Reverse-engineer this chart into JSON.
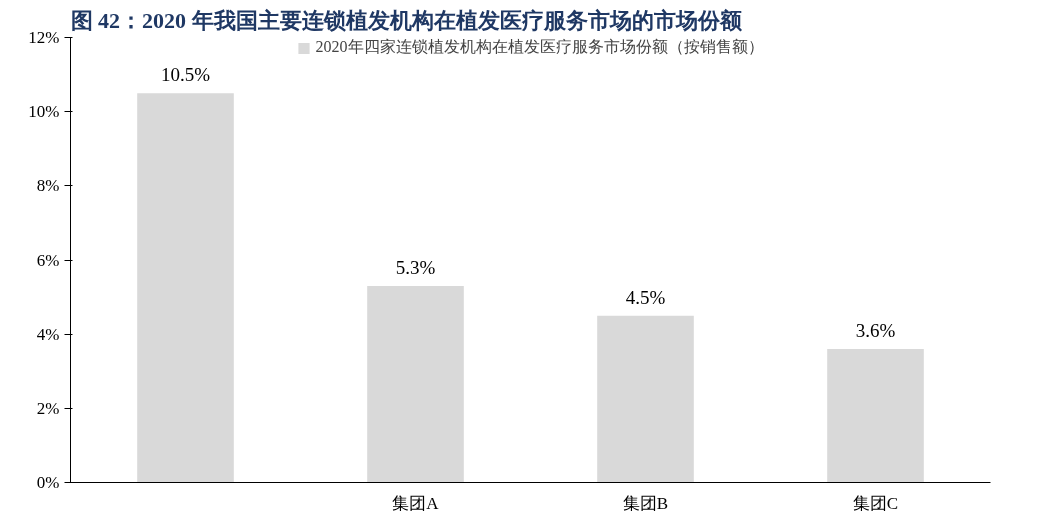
{
  "chart_data": {
    "type": "bar",
    "title": "图 42：2020 年我国主要连锁植发机构在植发医疗服务市场的市场份额",
    "categories": [
      null,
      "集团A",
      "集团B",
      "集团C"
    ],
    "series": [
      {
        "name": "2020年四家连锁植发机构在植发医疗服务市场份额（按销售额）",
        "color": "#d9d9d9",
        "values": [
          10.5,
          5.3,
          4.5,
          3.6
        ]
      }
    ],
    "ylim": [
      0,
      12
    ],
    "yticks": [
      {
        "value": 0,
        "label": "0%"
      },
      {
        "value": 2,
        "label": "2%"
      },
      {
        "value": 4,
        "label": "4%"
      },
      {
        "value": 6,
        "label": "6%"
      },
      {
        "value": 8,
        "label": "8%"
      },
      {
        "value": 10,
        "label": "10%"
      },
      {
        "value": 12,
        "label": "12%"
      }
    ],
    "value_labels": [
      "10.5%",
      "5.3%",
      "4.5%",
      "3.6%"
    ],
    "grid": false,
    "legend": "top"
  }
}
